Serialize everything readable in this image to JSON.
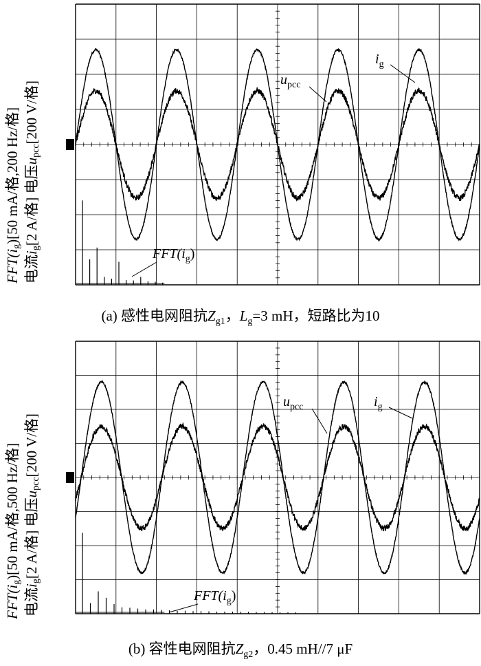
{
  "chart_data": [
    {
      "panel": "(a)",
      "type": "line",
      "caption": "(a) 感性电网阻抗Zg1，Lg=3 mH，短路比为10",
      "caption_parts": {
        "prefix": "(a) 感性电网阻抗",
        "z": "Z",
        "zsub": "g1",
        "mid": "，",
        "l": "L",
        "lsub": "g",
        "suffix": "=3 mH，短路比为10"
      },
      "ylabel_left": {
        "a": "FFT(",
        "b": "i",
        "c": "g",
        "d": ")[50 mA/格,200 Hz/格]"
      },
      "ylabel_right": {
        "a": "电流",
        "b": "i",
        "c": "g",
        "d": "[2 A/格]  电压",
        "e": "u",
        "f": "pcc",
        "g": "[200 V/格]"
      },
      "annotations": {
        "ig": "i",
        "ig_sub": "g",
        "upcc": "u",
        "upcc_sub": "pcc",
        "fft": "FFT(",
        "fft_i": "i",
        "fft_sub": "g",
        "fft_close": ")"
      },
      "grid": {
        "divisions_x": 10,
        "divisions_y": 8
      },
      "series": [
        {
          "name": "ig",
          "amplitude_div": 2.7,
          "cycles": 5,
          "phase_deg": 0,
          "noise": 0.03
        },
        {
          "name": "upcc",
          "amplitude_div": 1.53,
          "cycles": 5,
          "phase_deg": 0,
          "noise": 0.08
        }
      ],
      "fft_harmonics": {
        "bars": [
          [
            0,
            3.85
          ],
          [
            1,
            1.16
          ],
          [
            2,
            1.7
          ],
          [
            3,
            0.36
          ],
          [
            4,
            0.28
          ],
          [
            5,
            1.05
          ],
          [
            6,
            0.22
          ],
          [
            7,
            0.2
          ],
          [
            8,
            0.36
          ],
          [
            9,
            0.16
          ],
          [
            10,
            0.14
          ],
          [
            11,
            0.1
          ]
        ]
      }
    },
    {
      "panel": "(b)",
      "type": "line",
      "caption": "(b) 容性电网阻抗Zg2，0.45 mH//7 μF",
      "caption_parts": {
        "prefix": "(b) 容性电网阻抗",
        "z": "Z",
        "zsub": "g2",
        "suffix": "，0.45 mH//7 μF"
      },
      "ylabel_left": {
        "a": "FFT(",
        "b": "i",
        "c": "g",
        "d": ")[50 mA/格,500 Hz/格]"
      },
      "ylabel_right": {
        "a": "电流",
        "b": "i",
        "c": "g",
        "d": "[2 A/格]  电压",
        "e": "u",
        "f": "pcc",
        "g": "[200 V/格]"
      },
      "annotations": {
        "ig": "i",
        "ig_sub": "g",
        "upcc": "u",
        "upcc_sub": "pcc",
        "fft": "FFT(",
        "fft_i": "i",
        "fft_sub": "g",
        "fft_close": ")"
      },
      "grid": {
        "divisions_x": 10,
        "divisions_y": 8
      },
      "series": [
        {
          "name": "ig",
          "amplitude_div": 2.8,
          "cycles": 5,
          "phase_deg": -25,
          "noise": 0.03
        },
        {
          "name": "upcc",
          "amplitude_div": 1.5,
          "cycles": 5,
          "phase_deg": -25,
          "noise": 0.08
        }
      ],
      "fft_harmonics": {
        "bars": [
          [
            0,
            3.8
          ],
          [
            1,
            0.5
          ],
          [
            2,
            1.05
          ],
          [
            3,
            0.75
          ],
          [
            4,
            0.45
          ],
          [
            5,
            0.3
          ],
          [
            6,
            0.28
          ],
          [
            7,
            0.24
          ],
          [
            8,
            0.2
          ],
          [
            9,
            0.2
          ],
          [
            10,
            0.18
          ],
          [
            11,
            0.16
          ],
          [
            12,
            0.14
          ],
          [
            13,
            0.14
          ],
          [
            14,
            0.12
          ],
          [
            15,
            0.12
          ],
          [
            16,
            0.11
          ],
          [
            17,
            0.1
          ],
          [
            18,
            0.1
          ],
          [
            19,
            0.1
          ],
          [
            20,
            0.09
          ],
          [
            21,
            0.09
          ],
          [
            22,
            0.08
          ],
          [
            23,
            0.08
          ],
          [
            24,
            0.08
          ],
          [
            25,
            0.07
          ],
          [
            26,
            0.07
          ],
          [
            27,
            0.07
          ]
        ]
      }
    }
  ]
}
